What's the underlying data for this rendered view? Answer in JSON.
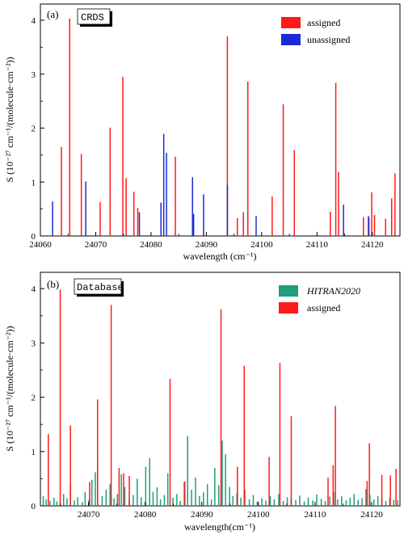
{
  "figure": {
    "colors": {
      "assigned": "#ff1a1a",
      "unassigned": "#1a2bd6",
      "hitran": "#1f9e7a",
      "axis": "#000000"
    }
  },
  "chart_data": [
    {
      "type": "bar",
      "panel_label": "(a)",
      "box_label": "CRDS",
      "xlabel": "wavelength (cm⁻¹)",
      "ylabel": "S (10⁻²⁷ cm⁻¹/(molecule·cm⁻²))",
      "xlim": [
        24060,
        24125
      ],
      "ylim": [
        0,
        4.3
      ],
      "xticks": [
        24060,
        24070,
        24080,
        24090,
        24100,
        24110,
        24120
      ],
      "yticks": [
        0,
        1,
        2,
        3,
        4
      ],
      "grid": false,
      "legend_position": "top-right",
      "series": [
        {
          "name": "assigned",
          "color": "#ff1a1a",
          "x": [
            24063.8,
            24065.3,
            24067.4,
            24070.8,
            24072.6,
            24074.9,
            24075.5,
            24076.9,
            24077.6,
            24084.4,
            24093.8,
            24095.6,
            24096.7,
            24097.5,
            24101.9,
            24103.9,
            24105.9,
            24112.4,
            24113.4,
            24113.9,
            24118.4,
            24119.4,
            24119.9,
            24120.4,
            24122.4,
            24123.5,
            24124.1
          ],
          "y": [
            1.65,
            4.03,
            1.52,
            0.63,
            2.01,
            2.95,
            1.07,
            0.82,
            0.52,
            1.47,
            3.7,
            0.33,
            0.44,
            2.86,
            0.73,
            2.44,
            1.59,
            0.45,
            2.84,
            1.19,
            0.35,
            0.34,
            0.81,
            0.39,
            0.32,
            0.7,
            1.16
          ]
        },
        {
          "name": "unassigned",
          "color": "#1a2bd6",
          "x": [
            24062.2,
            24068.2,
            24077.9,
            24081.8,
            24082.3,
            24082.8,
            24087.5,
            24087.7,
            24089.5,
            24093.8,
            24099.0,
            24114.8,
            24119.3
          ],
          "y": [
            0.64,
            1.01,
            0.44,
            0.62,
            1.89,
            1.54,
            1.09,
            0.41,
            0.77,
            0.95,
            0.37,
            0.58,
            0.37
          ]
        }
      ]
    },
    {
      "type": "bar",
      "panel_label": "(b)",
      "box_label": "Database",
      "xlabel": "wavelength(cm⁻¹)",
      "ylabel": "S (10⁻²⁷ cm⁻¹/(molecule·cm⁻²))",
      "xlim": [
        24061.5,
        24125
      ],
      "ylim": [
        0,
        4.3
      ],
      "xticks": [
        24070,
        24080,
        24090,
        24100,
        24110,
        24120
      ],
      "yticks": [
        0,
        1,
        2,
        3,
        4
      ],
      "grid": false,
      "legend_position": "top-right",
      "series": [
        {
          "name": "HITRAN2020",
          "color": "#1f9e7a",
          "x": [
            24062.0,
            24062.5,
            24063.2,
            24063.9,
            24064.4,
            24065.6,
            24066.2,
            24066.8,
            24067.5,
            24068.1,
            24068.9,
            24069.4,
            24070.1,
            24070.6,
            24071.2,
            24071.6,
            24072.4,
            24073.1,
            24073.8,
            24074.5,
            24075.1,
            24075.8,
            24076.4,
            24077.2,
            24077.9,
            24078.6,
            24079.3,
            24080.1,
            24080.8,
            24081.4,
            24082.1,
            24082.7,
            24083.4,
            24084.0,
            24084.9,
            24085.6,
            24086.2,
            24086.9,
            24087.5,
            24088.2,
            24088.9,
            24089.6,
            24090.3,
            24091.0,
            24091.7,
            24092.3,
            24093.0,
            24093.6,
            24094.2,
            24094.9,
            24095.5,
            24096.2,
            24096.9,
            24097.6,
            24098.4,
            24099.1,
            24099.8,
            24100.6,
            24101.3,
            24102.1,
            24102.8,
            24103.6,
            24104.4,
            24105.1,
            24105.8,
            24106.6,
            24107.3,
            24108.1,
            24108.8,
            24109.6,
            24110.3,
            24111.1,
            24111.8,
            24112.6,
            24113.3,
            24114.0,
            24114.7,
            24115.5,
            24116.2,
            24116.9,
            24117.6,
            24118.3,
            24119.0,
            24119.7,
            24120.4,
            24121.1,
            24121.8,
            24122.5,
            24123.2,
            24123.9,
            24124.6
          ],
          "y": [
            0.18,
            0.12,
            0.09,
            0.15,
            0.08,
            0.22,
            0.14,
            0.38,
            0.1,
            0.16,
            0.07,
            0.25,
            0.12,
            0.48,
            0.62,
            0.85,
            0.18,
            0.3,
            0.4,
            0.14,
            0.22,
            0.58,
            0.35,
            0.12,
            0.2,
            0.5,
            0.16,
            0.72,
            0.88,
            0.26,
            0.34,
            0.12,
            0.2,
            0.6,
            0.15,
            0.22,
            0.09,
            0.44,
            1.29,
            0.3,
            0.52,
            0.18,
            0.25,
            0.4,
            0.12,
            0.7,
            0.38,
            1.2,
            0.95,
            0.35,
            0.18,
            0.24,
            0.15,
            0.3,
            0.12,
            0.2,
            0.08,
            0.14,
            0.1,
            0.18,
            0.12,
            0.22,
            0.09,
            0.16,
            0.13,
            0.11,
            0.19,
            0.08,
            0.15,
            0.1,
            0.21,
            0.13,
            0.09,
            0.17,
            0.26,
            0.12,
            0.18,
            0.1,
            0.15,
            0.22,
            0.11,
            0.14,
            0.31,
            0.2,
            0.12,
            0.18,
            0.16,
            0.09,
            0.14,
            0.11,
            0.1
          ]
        },
        {
          "name": "assigned",
          "color": "#ff1a1a",
          "x": [
            24062.9,
            24065.0,
            24066.8,
            24070.2,
            24071.6,
            24074.0,
            24075.4,
            24076.2,
            24077.2,
            24084.4,
            24087.0,
            24093.4,
            24096.3,
            24097.5,
            24101.9,
            24103.8,
            24105.8,
            24112.3,
            24113.2,
            24113.6,
            24119.2,
            24119.6,
            24121.8,
            24123.3,
            24124.3
          ],
          "y": [
            1.32,
            3.98,
            1.48,
            0.44,
            1.96,
            3.7,
            0.7,
            0.6,
            0.55,
            2.34,
            0.45,
            3.62,
            0.72,
            2.58,
            0.9,
            2.63,
            1.65,
            0.52,
            0.75,
            1.84,
            0.46,
            1.15,
            0.57,
            0.56,
            0.68
          ]
        }
      ]
    }
  ]
}
